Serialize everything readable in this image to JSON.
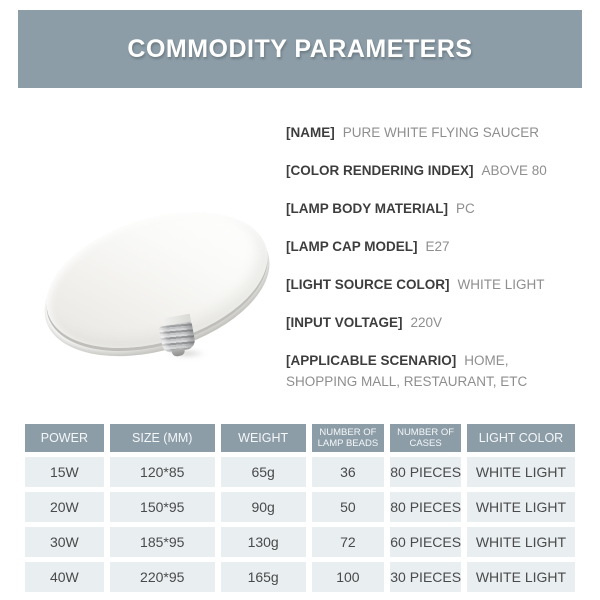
{
  "header": {
    "title": "COMMODITY PARAMETERS"
  },
  "parameters": [
    {
      "label": "[NAME]",
      "value": "PURE WHITE FLYING SAUCER"
    },
    {
      "label": "[COLOR RENDERING INDEX]",
      "value": "ABOVE 80"
    },
    {
      "label": "[LAMP BODY MATERIAL]",
      "value": "PC"
    },
    {
      "label": "[LAMP CAP MODEL]",
      "value": "E27"
    },
    {
      "label": "[LIGHT SOURCE COLOR]",
      "value": "WHITE LIGHT"
    },
    {
      "label": "[INPUT VOLTAGE]",
      "value": "220V"
    },
    {
      "label": "[APPLICABLE SCENARIO]",
      "value": "HOME, SHOPPING MALL, RESTAURANT, ETC"
    }
  ],
  "table": {
    "headers": [
      "POWER",
      "SIZE (MM)",
      "WEIGHT",
      "NUMBER OF LAMP BEADS",
      "NUMBER OF CASES",
      "LIGHT COLOR"
    ],
    "rows": [
      [
        "15W",
        "120*85",
        "65g",
        "36",
        "80 PIECES",
        "WHITE LIGHT"
      ],
      [
        "20W",
        "150*95",
        "90g",
        "50",
        "80 PIECES",
        "WHITE LIGHT"
      ],
      [
        "30W",
        "185*95",
        "130g",
        "72",
        "60 PIECES",
        "WHITE LIGHT"
      ],
      [
        "40W",
        "220*95",
        "165g",
        "100",
        "30 PIECES",
        "WHITE LIGHT"
      ]
    ]
  },
  "colors": {
    "banner_bg": "#8c9da8",
    "table_header_bg": "#8c9da8",
    "table_row_bg": "#e9eef1",
    "banner_text": "#ffffff",
    "label_text": "#3d3d3d",
    "value_text": "#8e8e8e",
    "cell_text": "#4a4a4a"
  }
}
